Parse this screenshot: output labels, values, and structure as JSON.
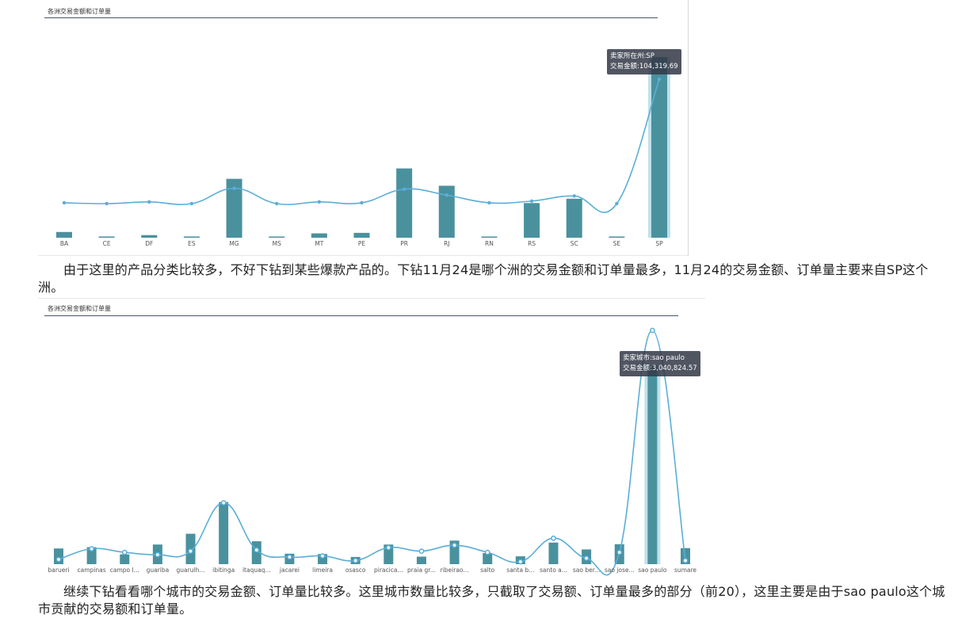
{
  "colors": {
    "bar": "#4a919e",
    "line": "#5aaed8",
    "highlight": "#8cc8d8",
    "tooltip_bg": "#323746"
  },
  "chart1": {
    "title": "各洲交易金额和订单量",
    "tooltip": {
      "line1": "卖家所在州:SP",
      "line2": "交易金额:104,319.69"
    }
  },
  "chart2": {
    "title": "各洲交易金额和订单量",
    "tooltip": {
      "line1": "卖家城市:sao paulo",
      "line2": "交易金额:3,040,824.57"
    }
  },
  "paragraph1": "由于这里的产品分类比较多，不好下钻到某些爆款产品的。下钻11月24是哪个洲的交易金额和订单量最多，11月24的交易金额、订单量主要来自SP这个洲。",
  "paragraph2": "继续下钻看看哪个城市的交易金额、订单量比较多。这里城市数量比较多，只截取了交易额、订单量最多的部分（前20），这里主要是由于sao paulo这个城市贡献的交易额和订单量。",
  "chart_data": [
    {
      "type": "bar",
      "title": "各洲交易金额和订单量",
      "categories": [
        "BA",
        "CE",
        "DF",
        "ES",
        "MG",
        "MS",
        "MT",
        "PE",
        "PR",
        "RJ",
        "RN",
        "RS",
        "SC",
        "SE",
        "SP"
      ],
      "series": [
        {
          "type": "bar",
          "values": [
            3300,
            700,
            1500,
            700,
            34000,
            500,
            2500,
            2800,
            40000,
            30000,
            500,
            20000,
            22500,
            500,
            104319.69
          ]
        },
        {
          "type": "line",
          "values": [
            41,
            40,
            42,
            40,
            58,
            40,
            42,
            41,
            57,
            50,
            41,
            43,
            49,
            40,
            186
          ]
        }
      ],
      "highlighted": "SP"
    },
    {
      "type": "bar",
      "title": "各洲交易金额和订单量",
      "categories": [
        "barueri",
        "campinas",
        "campo l...",
        "guariba",
        "guarulh...",
        "ibitinga",
        "itaquaq...",
        "jacarei",
        "limeira",
        "osasco",
        "piracica...",
        "praia gr...",
        "ribeirao...",
        "salto",
        "santa b...",
        "santo a...",
        "sao ber...",
        "sao jose...",
        "sao paulo",
        "sumare"
      ],
      "series": [
        {
          "type": "bar",
          "values": [
            240000,
            260000,
            150000,
            300000,
            465000,
            950000,
            350000,
            160000,
            155000,
            110000,
            300000,
            115000,
            360000,
            170000,
            120000,
            330000,
            225000,
            305000,
            3040824.57,
            245000
          ]
        },
        {
          "type": "line",
          "values": [
            4,
            13,
            10,
            8,
            11,
            52,
            12,
            6,
            7,
            3,
            14,
            11,
            16,
            10,
            2,
            22,
            5,
            10,
            198,
            3
          ]
        }
      ],
      "highlighted": "sao paulo"
    }
  ]
}
